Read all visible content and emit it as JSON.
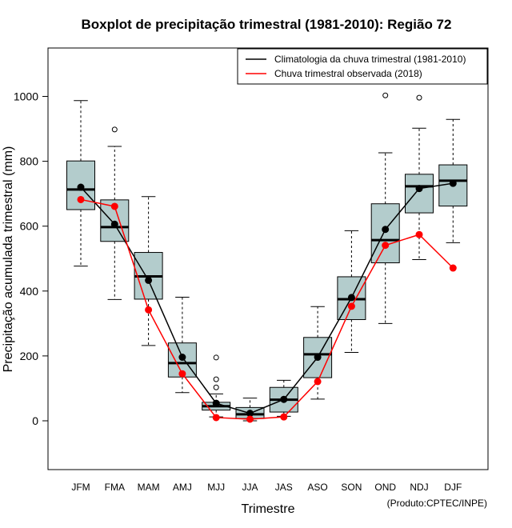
{
  "chart_data": {
    "type": "boxplot",
    "title": "Boxplot de precipitação trimestral (1981-2010): Região 72",
    "xlabel": "Trimestre",
    "ylabel": "Precipitação acumulada trimestral (mm)",
    "credit": "(Produto:CPTEC/INPE)",
    "ylim": [
      -150,
      1150
    ],
    "yticks": [
      0,
      200,
      400,
      600,
      800,
      1000
    ],
    "categories": [
      "JFM",
      "FMA",
      "MAM",
      "AMJ",
      "MJJ",
      "JJA",
      "JAS",
      "ASO",
      "SON",
      "OND",
      "NDJ",
      "DJF"
    ],
    "boxes": [
      {
        "min": 477,
        "q1": 651,
        "median": 713,
        "q3": 801,
        "max": 987,
        "outliers": []
      },
      {
        "min": 374,
        "q1": 553,
        "median": 597,
        "q3": 681,
        "max": 846,
        "outliers": [
          898
        ]
      },
      {
        "min": 232,
        "q1": 375,
        "median": 445,
        "q3": 519,
        "max": 691,
        "outliers": []
      },
      {
        "min": 87,
        "q1": 135,
        "median": 178,
        "q3": 240,
        "max": 381,
        "outliers": []
      },
      {
        "min": 12,
        "q1": 33,
        "median": 45,
        "q3": 57,
        "max": 83,
        "outliers": [
          195,
          128,
          103
        ]
      },
      {
        "min": 0,
        "q1": 7,
        "median": 20,
        "q3": 41,
        "max": 70,
        "outliers": []
      },
      {
        "min": 14,
        "q1": 27,
        "median": 65,
        "q3": 103,
        "max": 125,
        "outliers": []
      },
      {
        "min": 67,
        "q1": 133,
        "median": 205,
        "q3": 257,
        "max": 352,
        "outliers": []
      },
      {
        "min": 211,
        "q1": 312,
        "median": 375,
        "q3": 444,
        "max": 586,
        "outliers": []
      },
      {
        "min": 300,
        "q1": 487,
        "median": 557,
        "q3": 669,
        "max": 826,
        "outliers": [
          1003
        ]
      },
      {
        "min": 497,
        "q1": 641,
        "median": 723,
        "q3": 760,
        "max": 902,
        "outliers": [
          996
        ]
      },
      {
        "min": 549,
        "q1": 662,
        "median": 740,
        "q3": 789,
        "max": 929,
        "outliers": []
      }
    ],
    "series": [
      {
        "name": "Climatologia da chuva trimestral (1981-2010)",
        "color": "#000000",
        "values": [
          720,
          606,
          433,
          196,
          54,
          23,
          66,
          196,
          380,
          590,
          716,
          732
        ]
      },
      {
        "name": "Chuva trimestral observada (2018)",
        "color": "#ff0000",
        "values": [
          682,
          661,
          342,
          145,
          10,
          5,
          12,
          121,
          353,
          541,
          574,
          471
        ]
      }
    ],
    "box_fill": "#b3cccc"
  }
}
